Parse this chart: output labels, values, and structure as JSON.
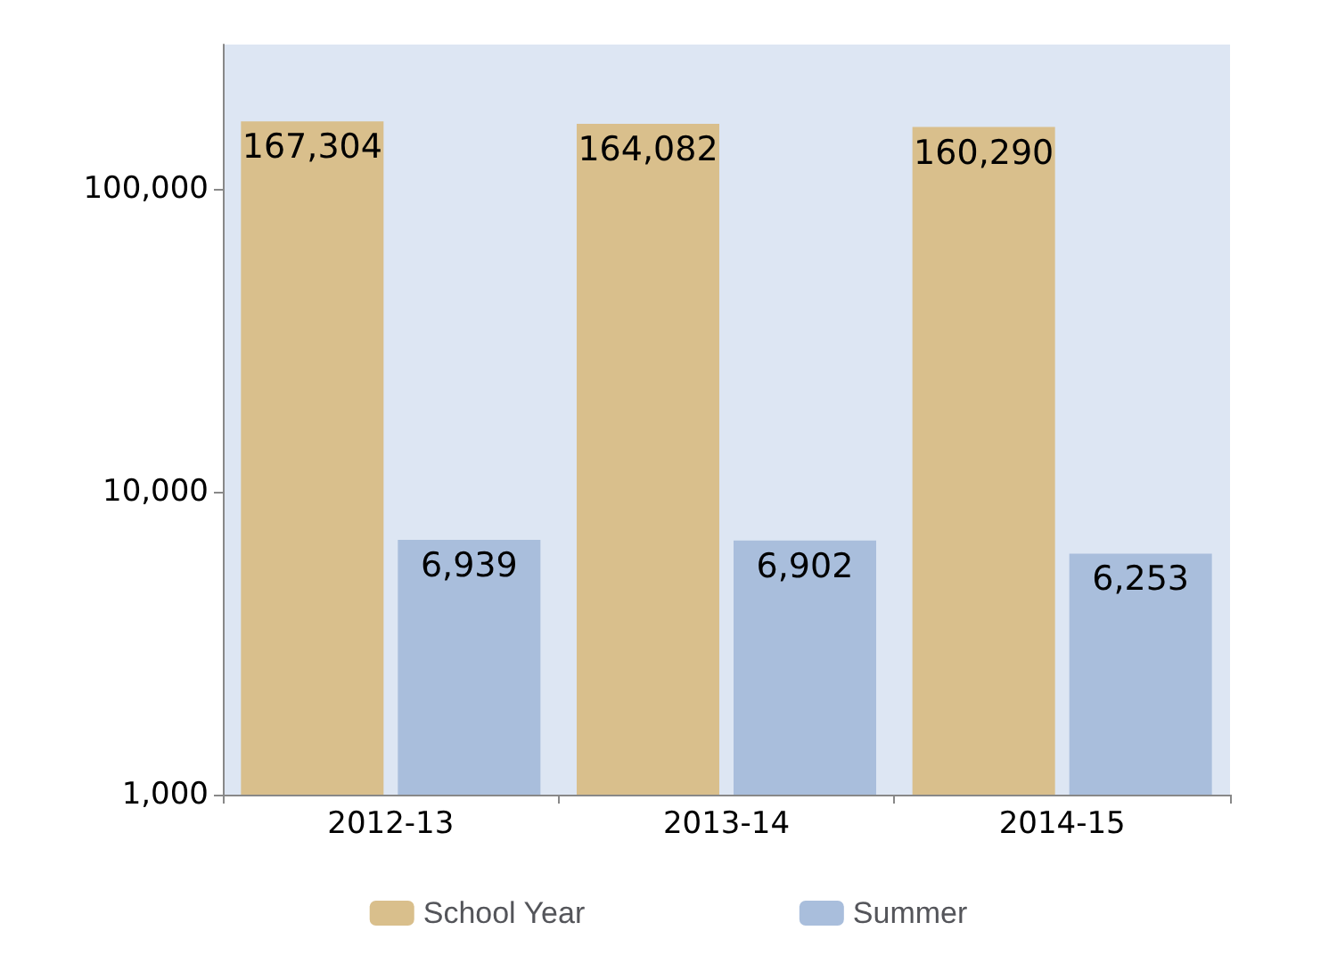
{
  "chart_data": {
    "type": "bar",
    "categories": [
      "2012-13",
      "2013-14",
      "2014-15"
    ],
    "series": [
      {
        "name": "School Year",
        "color": "#d9bf8c",
        "values": [
          167304,
          164082,
          160290
        ],
        "value_labels": [
          "167,304",
          "164,082",
          "160,290"
        ]
      },
      {
        "name": "Summer",
        "color": "#a9bedc",
        "values": [
          6939,
          6902,
          6253
        ],
        "value_labels": [
          "6,939",
          "6,902",
          "6,253"
        ]
      }
    ],
    "log": "y",
    "ylim": [
      1000,
      300000
    ],
    "yticks": [
      {
        "value": 1000,
        "label": "1,000"
      },
      {
        "value": 10000,
        "label": "10,000"
      },
      {
        "value": 100000,
        "label": "100,000"
      }
    ],
    "legend": "bottom",
    "grid": false
  }
}
